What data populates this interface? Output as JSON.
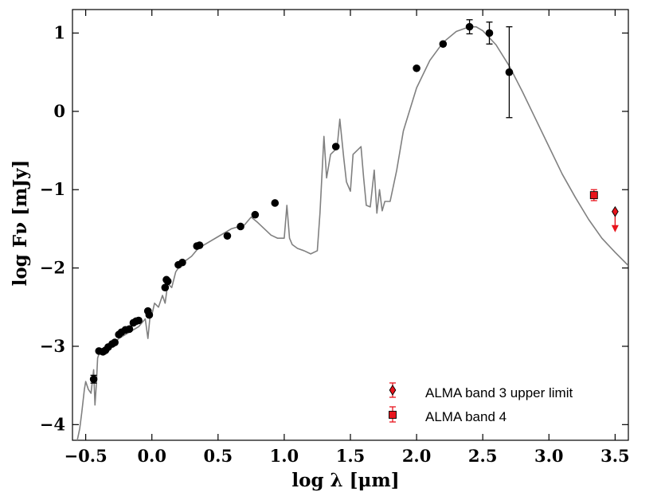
{
  "chart_data": {
    "type": "scatter",
    "xlabel": "log λ [μm]",
    "ylabel": "log Fν [mJy]",
    "xlim": [
      -0.6,
      3.6
    ],
    "ylim": [
      -4.2,
      1.3
    ],
    "x_ticks": [
      -0.5,
      0.0,
      0.5,
      1.0,
      1.5,
      2.0,
      2.5,
      3.0,
      3.5
    ],
    "x_tick_labels": [
      "−0.5",
      "0.0",
      "0.5",
      "1.0",
      "1.5",
      "2.0",
      "2.5",
      "3.0",
      "3.5"
    ],
    "y_ticks": [
      1,
      0,
      -1,
      -2,
      -3,
      -4
    ],
    "y_tick_labels": [
      "1",
      "0",
      "−1",
      "−2",
      "−3",
      "−4"
    ],
    "grid": false,
    "legend_position": "bottom-right",
    "colors": {
      "model": "#808080",
      "photometry": "#000000",
      "alma": "#e8141c"
    },
    "model_curve": {
      "x": [
        -0.57,
        -0.545,
        -0.53,
        -0.51,
        -0.5,
        -0.48,
        -0.46,
        -0.44,
        -0.43,
        -0.42,
        -0.41,
        -0.4,
        -0.38,
        -0.35,
        -0.3,
        -0.25,
        -0.2,
        -0.15,
        -0.1,
        -0.05,
        -0.03,
        -0.01,
        0.0,
        0.02,
        0.05,
        0.08,
        0.1,
        0.12,
        0.15,
        0.18,
        0.22,
        0.3,
        0.35,
        0.4,
        0.5,
        0.6,
        0.7,
        0.75,
        0.8,
        0.85,
        0.9,
        0.95,
        1.0,
        1.02,
        1.04,
        1.06,
        1.1,
        1.15,
        1.2,
        1.25,
        1.27,
        1.3,
        1.32,
        1.35,
        1.38,
        1.4,
        1.42,
        1.45,
        1.47,
        1.5,
        1.52,
        1.55,
        1.58,
        1.6,
        1.62,
        1.65,
        1.68,
        1.7,
        1.72,
        1.74,
        1.76,
        1.8,
        1.85,
        1.9,
        2.0,
        2.1,
        2.2,
        2.3,
        2.4,
        2.45,
        2.5,
        2.6,
        2.7,
        2.8,
        2.9,
        3.0,
        3.1,
        3.2,
        3.3,
        3.4,
        3.5,
        3.6
      ],
      "y": [
        -4.25,
        -4.05,
        -3.85,
        -3.55,
        -3.45,
        -3.55,
        -3.6,
        -3.3,
        -3.75,
        -3.5,
        -3.15,
        -3.1,
        -3.05,
        -3.1,
        -3.0,
        -2.9,
        -2.85,
        -2.8,
        -2.75,
        -2.65,
        -2.9,
        -2.55,
        -2.6,
        -2.45,
        -2.5,
        -2.35,
        -2.45,
        -2.2,
        -2.25,
        -2.05,
        -1.95,
        -1.85,
        -1.75,
        -1.7,
        -1.6,
        -1.5,
        -1.45,
        -1.35,
        -1.42,
        -1.5,
        -1.58,
        -1.62,
        -1.62,
        -1.2,
        -1.62,
        -1.7,
        -1.75,
        -1.78,
        -1.82,
        -1.78,
        -1.3,
        -0.32,
        -0.85,
        -0.55,
        -0.5,
        -0.45,
        -0.1,
        -0.6,
        -0.9,
        -1.02,
        -0.55,
        -0.5,
        -0.45,
        -0.85,
        -1.2,
        -1.22,
        -0.75,
        -1.3,
        -1.0,
        -1.27,
        -1.15,
        -1.15,
        -0.75,
        -0.25,
        0.3,
        0.65,
        0.88,
        1.02,
        1.08,
        1.08,
        1.03,
        0.85,
        0.58,
        0.25,
        -0.1,
        -0.45,
        -0.8,
        -1.1,
        -1.38,
        -1.62,
        -1.8,
        -1.97
      ]
    },
    "photometry": {
      "x": [
        -0.44,
        -0.4,
        -0.37,
        -0.35,
        -0.33,
        -0.3,
        -0.28,
        -0.25,
        -0.23,
        -0.2,
        -0.17,
        -0.14,
        -0.12,
        -0.1,
        -0.03,
        -0.02,
        0.1,
        0.11,
        0.12,
        0.2,
        0.23,
        0.34,
        0.36,
        0.57,
        0.67,
        0.78,
        0.93,
        1.39,
        2.0,
        2.2,
        2.4,
        2.55,
        2.7
      ],
      "y": [
        -3.42,
        -3.06,
        -3.07,
        -3.05,
        -3.01,
        -2.97,
        -2.95,
        -2.85,
        -2.82,
        -2.79,
        -2.78,
        -2.7,
        -2.68,
        -2.67,
        -2.55,
        -2.6,
        -2.25,
        -2.15,
        -2.17,
        -1.96,
        -1.93,
        -1.72,
        -1.71,
        -1.59,
        -1.47,
        -1.32,
        -1.17,
        -0.45,
        0.55,
        0.86,
        1.08,
        1.0,
        0.5
      ],
      "yerr": [
        0.05,
        0.03,
        0.03,
        0.03,
        0.03,
        0.03,
        0.03,
        0.03,
        0.03,
        0.03,
        0.03,
        0.03,
        0.03,
        0.03,
        0.03,
        0.03,
        0.03,
        0.03,
        0.03,
        0.03,
        0.03,
        0.03,
        0.03,
        0.03,
        0.03,
        0.03,
        0.03,
        0.03,
        0.03,
        0.04,
        0.09,
        0.14,
        0.58
      ]
    },
    "series": [
      {
        "name": "ALMA band 3 upper limit",
        "marker": "diamond",
        "x": [
          3.5
        ],
        "y": [
          -1.28
        ],
        "upper_limit": true
      },
      {
        "name": "ALMA band 4",
        "marker": "square",
        "x": [
          3.34
        ],
        "y": [
          -1.07
        ],
        "yerr": [
          0.07
        ]
      }
    ]
  }
}
